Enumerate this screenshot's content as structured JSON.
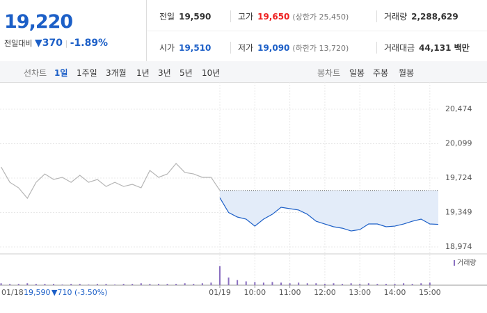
{
  "header": {
    "price": "19,220",
    "change_label": "전일대비",
    "change": "▼370",
    "change_pct": "-1.89%",
    "stats": [
      [
        {
          "label": "전일",
          "value": "19,590"
        },
        {
          "label": "고가",
          "value": "19,650",
          "extra": "(상한가 25,450)"
        },
        {
          "label": "거래량",
          "value": "2,288,629"
        }
      ],
      [
        {
          "label": "시가",
          "value": "19,510"
        },
        {
          "label": "저가",
          "value": "19,090",
          "extra": "(하한가 13,720)"
        },
        {
          "label": "거래대금",
          "value": "44,131 백만"
        }
      ]
    ]
  },
  "tabs": {
    "line_label": "선차트",
    "line": [
      "1일",
      "1주일",
      "3개월",
      "1년",
      "3년",
      "5년",
      "10년"
    ],
    "candle_label": "봉차트",
    "candle": [
      "일봉",
      "주봉",
      "월봉"
    ]
  },
  "status": {
    "date": "01/18",
    "close": "19,590",
    "change": "▼710 (-3.50%)"
  },
  "chart_data": {
    "type": "line",
    "x": [
      15,
      30,
      45,
      60,
      75,
      90,
      105,
      120,
      135,
      150,
      165,
      180,
      195,
      210,
      225,
      240,
      255,
      270,
      285,
      300,
      315,
      330,
      345,
      360,
      375,
      390,
      405,
      420,
      435,
      450,
      465,
      480,
      495,
      510,
      525,
      540,
      555,
      570,
      585,
      600,
      615,
      630,
      645,
      660,
      675,
      690,
      705,
      720,
      735,
      750,
      765
    ],
    "series": [
      {
        "color": "#b5b5b5",
        "values": [
          19845,
          19678,
          19618,
          19504,
          19678,
          19769,
          19709,
          19732,
          19678,
          19754,
          19678,
          19709,
          19633,
          19678,
          19633,
          19656,
          19618,
          19807,
          19732,
          19769,
          19883,
          19785,
          19769,
          19732,
          19732,
          19590,
          null,
          null,
          null,
          null,
          null,
          null,
          null,
          null,
          null,
          null,
          null,
          null,
          null,
          null,
          null,
          null,
          null,
          null,
          null,
          null,
          null,
          null,
          null,
          null,
          null
        ]
      },
      {
        "color": "#1c5fc7",
        "fill": "#e3ecf9",
        "values": [
          null,
          null,
          null,
          null,
          null,
          null,
          null,
          null,
          null,
          null,
          null,
          null,
          null,
          null,
          null,
          null,
          null,
          null,
          null,
          null,
          null,
          null,
          null,
          null,
          null,
          19510,
          19349,
          19300,
          19277,
          19201,
          19277,
          19330,
          19406,
          19391,
          19376,
          19330,
          19254,
          19224,
          19194,
          19178,
          19148,
          19163,
          19224,
          19224,
          19194,
          19201,
          19224,
          19254,
          19277,
          19224,
          19220
        ]
      }
    ],
    "ref_line": 19590,
    "volume": {
      "name": "거래량",
      "color": "#8a6fc0",
      "values": [
        3,
        2,
        2,
        3,
        2,
        2,
        2,
        1,
        2,
        2,
        1,
        2,
        2,
        1,
        2,
        2,
        3,
        2,
        2,
        2,
        2,
        3,
        2,
        3,
        4,
        30,
        12,
        8,
        6,
        5,
        4,
        5,
        4,
        3,
        4,
        3,
        3,
        2,
        3,
        2,
        3,
        2,
        3,
        2,
        2,
        2,
        3,
        2,
        3,
        4,
        36
      ]
    },
    "xlim": [
      0,
      780
    ],
    "ylim": [
      18900,
      20700
    ],
    "xticks": [
      {
        "value": 390,
        "label": "01/19"
      },
      {
        "value": 450,
        "label": "10:00"
      },
      {
        "value": 510,
        "label": "11:00"
      },
      {
        "value": 570,
        "label": "12:00"
      },
      {
        "value": 630,
        "label": "13:00"
      },
      {
        "value": 690,
        "label": "14:00"
      },
      {
        "value": 750,
        "label": "15:00"
      }
    ],
    "yticks": [
      {
        "value": 18974,
        "label": "18,974"
      },
      {
        "value": 19349,
        "label": "19,349"
      },
      {
        "value": 19724,
        "label": "19,724"
      },
      {
        "value": 20099,
        "label": "20,099"
      },
      {
        "value": 20474,
        "label": "20,474"
      }
    ],
    "grid": true
  }
}
